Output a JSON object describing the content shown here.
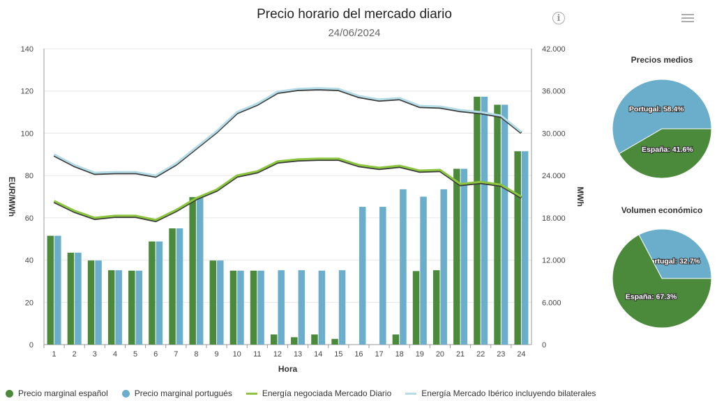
{
  "title": "Precio horario del mercado diario",
  "subtitle": "24/06/2024",
  "colors": {
    "spain": "#4a8a3a",
    "portugal": "#6aaecb",
    "energy_md": "#8cc63f",
    "energy_iberico": "#b5dde8",
    "energy_shadow": "#3a3a3a"
  },
  "icons": {
    "info": "info-icon",
    "menu": "hamburger-menu-icon"
  },
  "chart_data": [
    {
      "type": "bar",
      "title": "Precio horario del mercado diario",
      "subtitle": "24/06/2024",
      "xlabel": "Hora",
      "ylabel": "EUR/MWh",
      "y2label": "MWh",
      "categories": [
        "1",
        "2",
        "3",
        "4",
        "5",
        "6",
        "7",
        "8",
        "9",
        "10",
        "11",
        "12",
        "13",
        "14",
        "15",
        "16",
        "17",
        "18",
        "19",
        "20",
        "21",
        "22",
        "23",
        "24"
      ],
      "ylim": [
        0,
        140
      ],
      "yticks": [
        "0",
        "20",
        "40",
        "60",
        "80",
        "100",
        "120",
        "140"
      ],
      "y2lim": [
        0,
        42000
      ],
      "y2ticks": [
        "0",
        "6.000",
        "12.000",
        "18.000",
        "24.000",
        "30.000",
        "36.000",
        "42.000"
      ],
      "series": [
        {
          "name": "Precio marginal español",
          "kind": "bar",
          "axis": "left",
          "values": [
            51.5,
            43.5,
            39.8,
            35.2,
            35.0,
            48.8,
            55.0,
            69.8,
            39.8,
            35.0,
            35.0,
            4.8,
            3.5,
            4.8,
            2.7,
            0,
            0,
            4.8,
            34.8,
            35.2,
            83.2,
            117.3,
            113.5,
            91.5
          ]
        },
        {
          "name": "Precio marginal portugués",
          "kind": "bar",
          "axis": "left",
          "values": [
            51.5,
            43.5,
            39.8,
            35.2,
            35.0,
            48.8,
            55.0,
            69.8,
            39.8,
            35.0,
            35.0,
            35.2,
            35.2,
            35.0,
            35.2,
            65.2,
            65.2,
            73.5,
            70.0,
            73.5,
            83.2,
            117.3,
            113.5,
            91.5
          ]
        },
        {
          "name": "Energía negociada Mercado Diario",
          "kind": "line",
          "axis": "right",
          "values": [
            20400,
            19000,
            18000,
            18300,
            18300,
            17700,
            19100,
            20800,
            22000,
            24000,
            24600,
            26000,
            26300,
            26400,
            26400,
            25500,
            25100,
            25400,
            24700,
            24800,
            22800,
            23100,
            22700,
            21000
          ]
        },
        {
          "name": "Energía Mercado Ibérico incluyendo bilaterales",
          "kind": "line",
          "axis": "right",
          "values": [
            27000,
            25500,
            24400,
            24500,
            24500,
            24000,
            25700,
            28000,
            30300,
            33000,
            34200,
            35900,
            36300,
            36400,
            36300,
            35300,
            34800,
            35000,
            33900,
            33800,
            33300,
            33000,
            32500,
            30200
          ]
        }
      ],
      "grid": true,
      "legend": "bottom"
    },
    {
      "type": "pie",
      "title": "Precios medios",
      "slices": [
        {
          "label": "Portugal",
          "value": 58.4,
          "text": "Portugal: 58.4%"
        },
        {
          "label": "España",
          "value": 41.6,
          "text": "España: 41.6%"
        }
      ]
    },
    {
      "type": "pie",
      "title": "Volumen económico",
      "slices": [
        {
          "label": "Portugal",
          "value": 32.7,
          "text": "Portugal: 32.7%"
        },
        {
          "label": "España",
          "value": 67.3,
          "text": "España: 67.3%"
        }
      ]
    }
  ]
}
